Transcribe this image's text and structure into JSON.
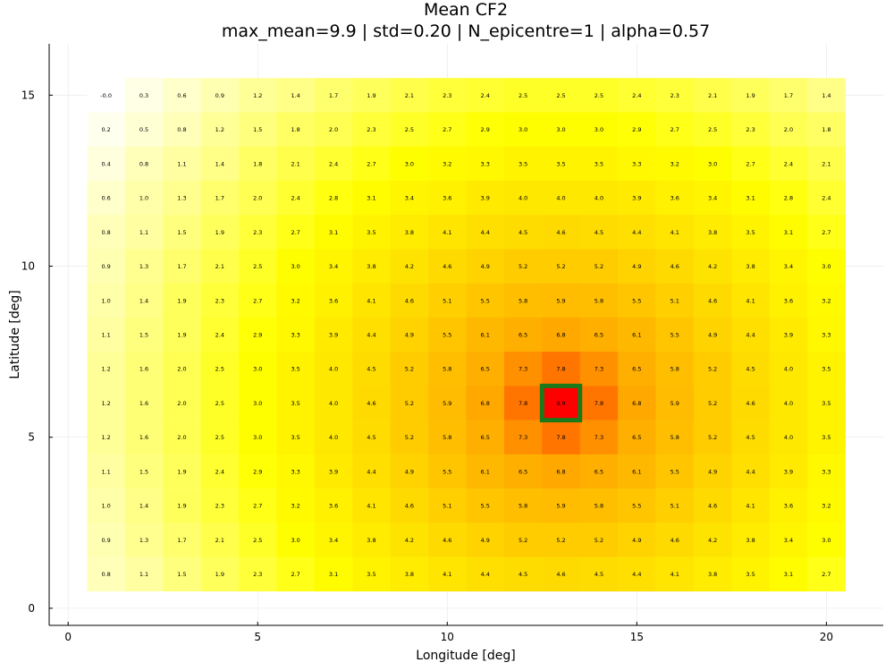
{
  "chart_data": {
    "type": "heatmap",
    "title": "Mean CF2",
    "subtitle": "max_mean=9.9 | std=0.20 | N_epicentre=1 | alpha=0.57",
    "xlabel": "Longitude [deg]",
    "ylabel": "Latitude [deg]",
    "xlim": [
      -0.5,
      21.5
    ],
    "ylim": [
      -0.5,
      16.5
    ],
    "xticks": [
      0,
      5,
      10,
      15,
      20
    ],
    "yticks": [
      0,
      5,
      10,
      15
    ],
    "grid": true,
    "colormap": "white-yellow-orange-red",
    "x": [
      1,
      2,
      3,
      4,
      5,
      6,
      7,
      8,
      9,
      10,
      11,
      12,
      13,
      14,
      15,
      16,
      17,
      18,
      19,
      20
    ],
    "y": [
      15,
      14,
      13,
      12,
      11,
      10,
      9,
      8,
      7,
      6,
      5,
      4,
      3,
      2,
      1
    ],
    "value_labels": [
      [
        "-0.0",
        "0.3",
        "0.6",
        "0.9",
        "1.2",
        "1.4",
        "1.7",
        "1.9",
        "2.1",
        "2.3",
        "2.4",
        "2.5",
        "2.5",
        "2.5",
        "2.4",
        "2.3",
        "2.1",
        "1.9",
        "1.7",
        "1.4"
      ],
      [
        "0.2",
        "0.5",
        "0.8",
        "1.2",
        "1.5",
        "1.8",
        "2.0",
        "2.3",
        "2.5",
        "2.7",
        "2.9",
        "3.0",
        "3.0",
        "3.0",
        "2.9",
        "2.7",
        "2.5",
        "2.3",
        "2.0",
        "1.8"
      ],
      [
        "0.4",
        "0.8",
        "1.1",
        "1.4",
        "1.8",
        "2.1",
        "2.4",
        "2.7",
        "3.0",
        "3.2",
        "3.3",
        "3.5",
        "3.5",
        "3.5",
        "3.3",
        "3.2",
        "3.0",
        "2.7",
        "2.4",
        "2.1"
      ],
      [
        "0.6",
        "1.0",
        "1.3",
        "1.7",
        "2.0",
        "2.4",
        "2.8",
        "3.1",
        "3.4",
        "3.6",
        "3.9",
        "4.0",
        "4.0",
        "4.0",
        "3.9",
        "3.6",
        "3.4",
        "3.1",
        "2.8",
        "2.4"
      ],
      [
        "0.8",
        "1.1",
        "1.5",
        "1.9",
        "2.3",
        "2.7",
        "3.1",
        "3.5",
        "3.8",
        "4.1",
        "4.4",
        "4.5",
        "4.6",
        "4.5",
        "4.4",
        "4.1",
        "3.8",
        "3.5",
        "3.1",
        "2.7"
      ],
      [
        "0.9",
        "1.3",
        "1.7",
        "2.1",
        "2.5",
        "3.0",
        "3.4",
        "3.8",
        "4.2",
        "4.6",
        "4.9",
        "5.2",
        "5.2",
        "5.2",
        "4.9",
        "4.6",
        "4.2",
        "3.8",
        "3.4",
        "3.0"
      ],
      [
        "1.0",
        "1.4",
        "1.9",
        "2.3",
        "2.7",
        "3.2",
        "3.6",
        "4.1",
        "4.6",
        "5.1",
        "5.5",
        "5.8",
        "5.9",
        "5.8",
        "5.5",
        "5.1",
        "4.6",
        "4.1",
        "3.6",
        "3.2"
      ],
      [
        "1.1",
        "1.5",
        "1.9",
        "2.4",
        "2.9",
        "3.3",
        "3.9",
        "4.4",
        "4.9",
        "5.5",
        "6.1",
        "6.5",
        "6.8",
        "6.5",
        "6.1",
        "5.5",
        "4.9",
        "4.4",
        "3.9",
        "3.3"
      ],
      [
        "1.2",
        "1.6",
        "2.0",
        "2.5",
        "3.0",
        "3.5",
        "4.0",
        "4.5",
        "5.2",
        "5.8",
        "6.5",
        "7.3",
        "7.8",
        "7.3",
        "6.5",
        "5.8",
        "5.2",
        "4.5",
        "4.0",
        "3.5"
      ],
      [
        "1.2",
        "1.6",
        "2.0",
        "2.5",
        "3.0",
        "3.5",
        "4.0",
        "4.6",
        "5.2",
        "5.9",
        "6.8",
        "7.8",
        "9.9",
        "7.8",
        "6.8",
        "5.9",
        "5.2",
        "4.6",
        "4.0",
        "3.5"
      ],
      [
        "1.2",
        "1.6",
        "2.0",
        "2.5",
        "3.0",
        "3.5",
        "4.0",
        "4.5",
        "5.2",
        "5.8",
        "6.5",
        "7.3",
        "7.8",
        "7.3",
        "6.5",
        "5.8",
        "5.2",
        "4.5",
        "4.0",
        "3.5"
      ],
      [
        "1.1",
        "1.5",
        "1.9",
        "2.4",
        "2.9",
        "3.3",
        "3.9",
        "4.4",
        "4.9",
        "5.5",
        "6.1",
        "6.5",
        "6.8",
        "6.5",
        "6.1",
        "5.5",
        "4.9",
        "4.4",
        "3.9",
        "3.3"
      ],
      [
        "1.0",
        "1.4",
        "1.9",
        "2.3",
        "2.7",
        "3.2",
        "3.6",
        "4.1",
        "4.6",
        "5.1",
        "5.5",
        "5.8",
        "5.9",
        "5.8",
        "5.5",
        "5.1",
        "4.6",
        "4.1",
        "3.6",
        "3.2"
      ],
      [
        "0.9",
        "1.3",
        "1.7",
        "2.1",
        "2.5",
        "3.0",
        "3.4",
        "3.8",
        "4.2",
        "4.6",
        "4.9",
        "5.2",
        "5.2",
        "5.2",
        "4.9",
        "4.6",
        "4.2",
        "3.8",
        "3.4",
        "3.0"
      ],
      [
        "0.8",
        "1.1",
        "1.5",
        "1.9",
        "2.3",
        "2.7",
        "3.1",
        "3.5",
        "3.8",
        "4.1",
        "4.4",
        "4.5",
        "4.6",
        "4.5",
        "4.4",
        "4.1",
        "3.8",
        "3.5",
        "3.1",
        "2.7"
      ]
    ],
    "epicentre": {
      "x": 13,
      "y": 6,
      "value": 9.9
    },
    "epicentre_color": "#1a7a1a"
  }
}
